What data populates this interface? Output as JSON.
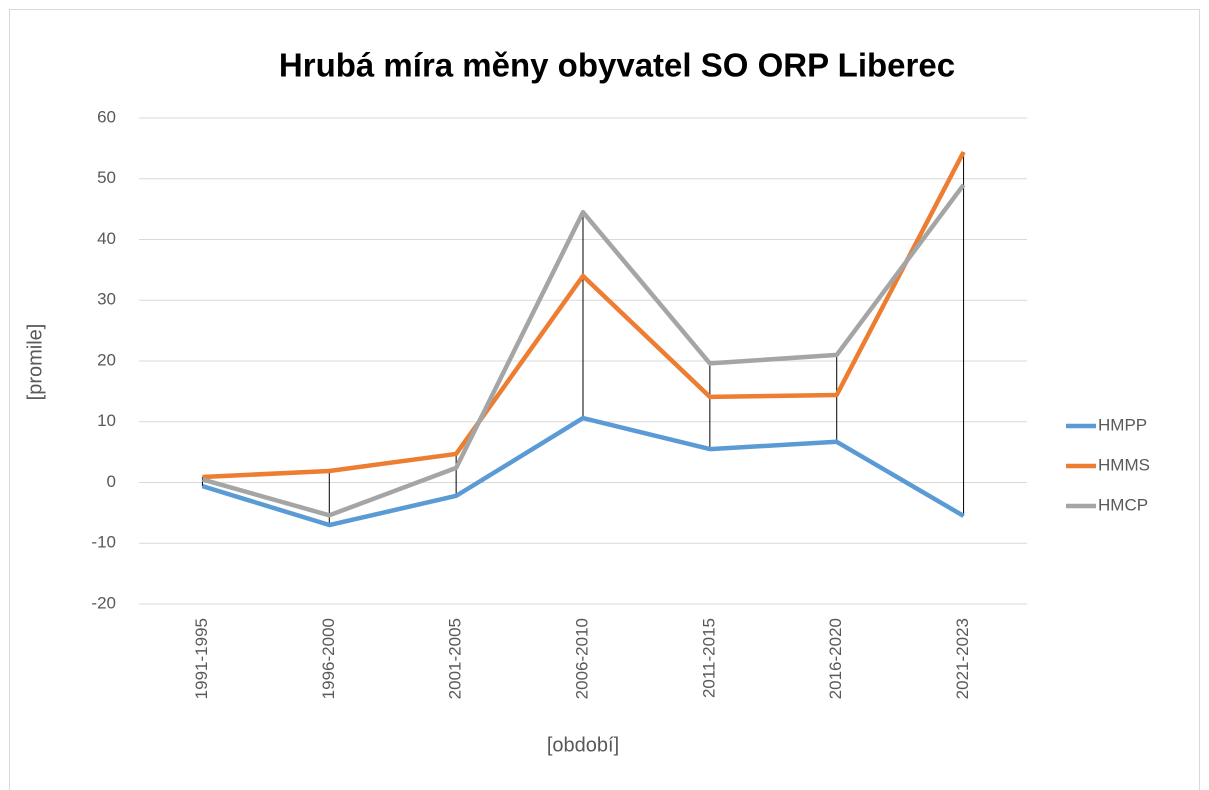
{
  "chart_data": {
    "type": "line",
    "title": "Hrubá míra měny obyvatel SO ORP Liberec",
    "x_label": "[období]",
    "y_label": "[promile]",
    "categories": [
      "1991-1995",
      "1996-2000",
      "2001-2005",
      "2006-2010",
      "2011-2015",
      "2016-2020",
      "2021-2023"
    ],
    "series": [
      {
        "name": "HMPP",
        "color": "#5b9bd5",
        "values": [
          -0.6,
          -7.0,
          -2.2,
          10.6,
          5.5,
          6.7,
          -5.5
        ]
      },
      {
        "name": "HMMS",
        "color": "#ed7d31",
        "values": [
          0.9,
          1.9,
          4.7,
          34.0,
          14.1,
          14.4,
          54.4
        ]
      },
      {
        "name": "HMCP",
        "color": "#a5a5a5",
        "values": [
          0.5,
          -5.4,
          2.4,
          44.5,
          19.6,
          21.0,
          49.0
        ]
      }
    ],
    "ylim": [
      -20,
      60
    ],
    "yticks": [
      -20,
      -10,
      0,
      10,
      20,
      30,
      40,
      50,
      60
    ],
    "grid": true,
    "high_low_lines": true,
    "legend": "right"
  }
}
